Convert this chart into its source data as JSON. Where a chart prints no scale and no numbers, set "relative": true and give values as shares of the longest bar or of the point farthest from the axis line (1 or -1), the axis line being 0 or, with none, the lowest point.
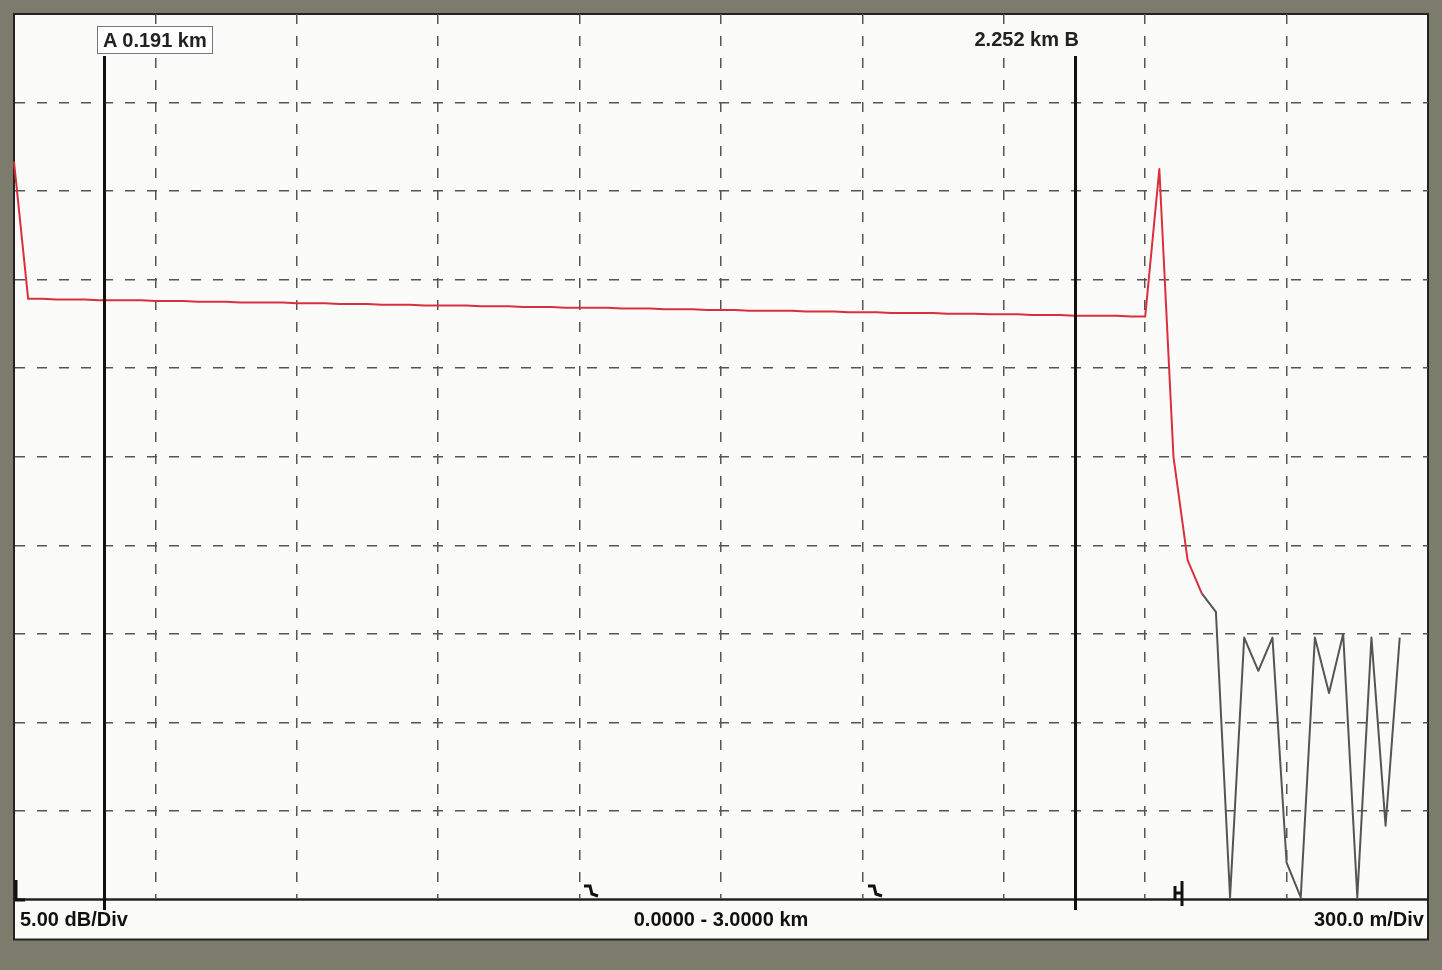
{
  "chart_data": {
    "type": "line",
    "xlabel": "0.0000 - 3.0000 km",
    "relative": true,
    "marker": "none",
    "grid": true,
    "categories": [
      null,
      null,
      null,
      null,
      null,
      null,
      null,
      null,
      null,
      null,
      null,
      null,
      null,
      null,
      null,
      null,
      null,
      null,
      null,
      null,
      null,
      null,
      null,
      null,
      null,
      null,
      null,
      null,
      null,
      null,
      null,
      null,
      null,
      null,
      null,
      null,
      null,
      null,
      null,
      null,
      null,
      null,
      null,
      null,
      null,
      null,
      null,
      null,
      null,
      null,
      null,
      null,
      null,
      null,
      null,
      null,
      null,
      null,
      null,
      null,
      null,
      null,
      null,
      null,
      null,
      null,
      null,
      null,
      null,
      null,
      null,
      null,
      null,
      null,
      null,
      null,
      null,
      null,
      null,
      null,
      null,
      null,
      null,
      null,
      null,
      null,
      null,
      null,
      null,
      null,
      null,
      null,
      null,
      null,
      null,
      null,
      null,
      null,
      null,
      null,
      null
    ],
    "series": [
      {
        "color": "#d9303c",
        "values": [
          1.0,
          0.814,
          0.814,
          0.813,
          0.813,
          0.813,
          0.812,
          0.812,
          0.812,
          0.812,
          0.811,
          0.811,
          0.811,
          0.81,
          0.81,
          0.81,
          0.809,
          0.809,
          0.809,
          0.809,
          0.808,
          0.808,
          0.808,
          0.807,
          0.807,
          0.807,
          0.806,
          0.806,
          0.806,
          0.805,
          0.805,
          0.805,
          0.805,
          0.804,
          0.804,
          0.804,
          0.803,
          0.803,
          0.803,
          0.802,
          0.802,
          0.802,
          0.802,
          0.801,
          0.801,
          0.801,
          0.8,
          0.8,
          0.8,
          0.799,
          0.799,
          0.799,
          0.798,
          0.798,
          0.798,
          0.798,
          0.797,
          0.797,
          0.797,
          0.796,
          0.796,
          0.796,
          0.795,
          0.795,
          0.795,
          0.795,
          0.794,
          0.794,
          0.794,
          0.793,
          0.793,
          0.793,
          0.792,
          0.792,
          0.792,
          0.791,
          0.791,
          0.791,
          0.791,
          0.79,
          0.79,
          0.99,
          0.6,
          0.46,
          0.415,
          null,
          null,
          null,
          null,
          null,
          null,
          null,
          null,
          null,
          null,
          null,
          null,
          null,
          null,
          null,
          null
        ]
      },
      {
        "color": "#555555",
        "values": [
          null,
          null,
          null,
          null,
          null,
          null,
          null,
          null,
          null,
          null,
          null,
          null,
          null,
          null,
          null,
          null,
          null,
          null,
          null,
          null,
          null,
          null,
          null,
          null,
          null,
          null,
          null,
          null,
          null,
          null,
          null,
          null,
          null,
          null,
          null,
          null,
          null,
          null,
          null,
          null,
          null,
          null,
          null,
          null,
          null,
          null,
          null,
          null,
          null,
          null,
          null,
          null,
          null,
          null,
          null,
          null,
          null,
          null,
          null,
          null,
          null,
          null,
          null,
          null,
          null,
          null,
          null,
          null,
          null,
          null,
          null,
          null,
          null,
          null,
          null,
          null,
          null,
          null,
          null,
          null,
          null,
          null,
          null,
          null,
          0.415,
          0.39,
          0.003,
          0.355,
          0.31,
          0.355,
          0.05,
          0.003,
          0.355,
          0.28,
          0.36,
          0.003,
          0.355,
          0.1,
          0.355,
          null,
          null
        ]
      }
    ],
    "annotations": [
      "A 0.191 km",
      "2.252 km B",
      "5.00 dB/Div",
      "300.0 m/Div"
    ]
  }
}
